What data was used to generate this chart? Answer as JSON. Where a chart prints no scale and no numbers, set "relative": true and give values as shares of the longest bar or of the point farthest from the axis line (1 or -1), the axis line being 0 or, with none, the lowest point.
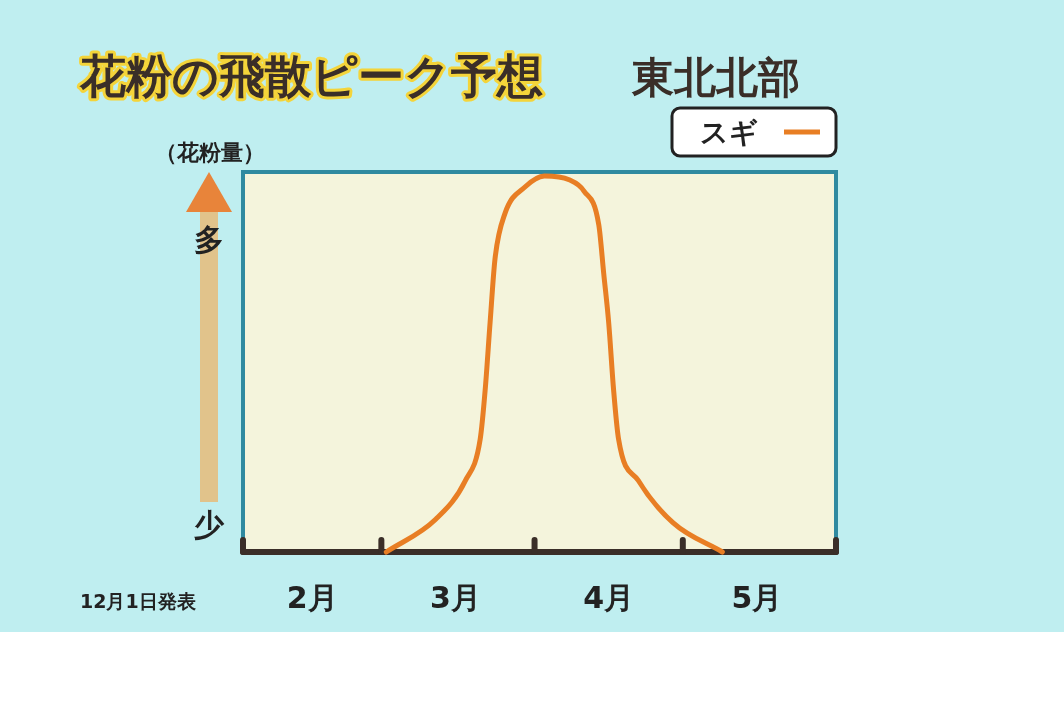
{
  "chart_data": {
    "type": "line",
    "title": "花粉の飛散ピーク予想",
    "subtitle": "東北北部",
    "ylabel": "（花粉量）",
    "annotations": [
      "多",
      "少",
      "12月1日発表"
    ],
    "relative": true,
    "xlim": [
      "--02-01",
      "--06-01"
    ],
    "xticks": [
      {
        "value": "--02-01",
        "label": null
      },
      {
        "value": "--02-15",
        "label": "2月"
      },
      {
        "value": "--03-01",
        "label": null
      },
      {
        "value": "--03-16",
        "label": "3月"
      },
      {
        "value": "--04-01",
        "label": null
      },
      {
        "value": "--04-16",
        "label": "4月"
      },
      {
        "value": "--05-01",
        "label": null
      },
      {
        "value": "--05-16",
        "label": "5月"
      },
      {
        "value": "--06-01",
        "label": null
      }
    ],
    "legend": "top right",
    "marker": "none",
    "line_style": "solid",
    "series": [
      {
        "name": "スギ",
        "color": "#e87e24",
        "x": [
          "--03-02",
          "--03-12",
          "--03-18",
          "--03-21",
          "--03-22",
          "--03-23",
          "--03-24",
          "--03-26",
          "--03-30",
          "--04-03",
          "--04-08",
          "--04-11",
          "--04-14",
          "--04-15",
          "--04-16",
          "--04-17",
          "--04-18",
          "--04-22",
          "--04-29",
          "--05-09"
        ],
        "values": [
          0,
          0.087,
          0.19,
          0.3,
          0.43,
          0.61,
          0.78,
          0.9,
          0.97,
          1,
          0.99,
          0.96,
          0.87,
          0.74,
          0.61,
          0.43,
          0.3,
          0.19,
          0.078,
          0
        ]
      }
    ]
  }
}
